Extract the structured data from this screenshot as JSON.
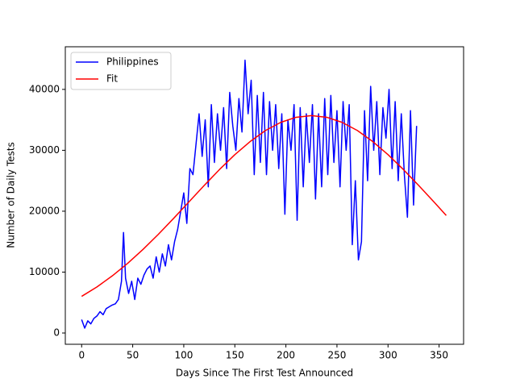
{
  "chart_data": {
    "type": "line",
    "xlabel": "Days Since The First Test Announced",
    "ylabel": "Number of Daily Tests",
    "xlim": [
      -16,
      374
    ],
    "ylim": [
      -1850,
      47000
    ],
    "xticks": [
      0,
      50,
      100,
      150,
      200,
      250,
      300,
      350
    ],
    "yticks": [
      0,
      10000,
      20000,
      30000,
      40000
    ],
    "legend": "upper left",
    "series": [
      {
        "name": "Philippines",
        "color": "#0000ff",
        "x": [
          0,
          3,
          6,
          9,
          12,
          15,
          18,
          21,
          24,
          27,
          30,
          33,
          36,
          39,
          41,
          43,
          46,
          49,
          52,
          55,
          58,
          61,
          64,
          67,
          70,
          73,
          76,
          79,
          82,
          85,
          88,
          91,
          94,
          97,
          100,
          103,
          106,
          109,
          112,
          115,
          118,
          121,
          124,
          127,
          130,
          133,
          136,
          139,
          142,
          145,
          148,
          151,
          154,
          157,
          160,
          163,
          166,
          169,
          172,
          175,
          178,
          181,
          184,
          187,
          190,
          193,
          196,
          199,
          202,
          205,
          208,
          211,
          214,
          217,
          220,
          223,
          226,
          229,
          232,
          235,
          238,
          241,
          244,
          247,
          250,
          253,
          256,
          259,
          262,
          265,
          268,
          271,
          274,
          277,
          280,
          283,
          286,
          289,
          292,
          295,
          298,
          301,
          304,
          307,
          310,
          313,
          316,
          319,
          322,
          325,
          328
        ],
        "values": [
          2200,
          800,
          2000,
          1500,
          2400,
          2800,
          3500,
          3000,
          4000,
          4300,
          4600,
          4800,
          5500,
          8500,
          16500,
          9000,
          6500,
          8500,
          5500,
          9000,
          8000,
          9500,
          10500,
          11000,
          9000,
          12500,
          10000,
          13000,
          11000,
          14500,
          12000,
          15000,
          17000,
          20000,
          23000,
          18000,
          27000,
          26000,
          31000,
          36000,
          29000,
          35000,
          24000,
          37500,
          28000,
          36000,
          30000,
          37000,
          27000,
          39500,
          34000,
          30000,
          38500,
          33000,
          44800,
          36000,
          41500,
          26000,
          39000,
          28000,
          39500,
          26000,
          38000,
          30000,
          37500,
          27000,
          36000,
          19500,
          35000,
          30000,
          37500,
          18500,
          37000,
          24000,
          36000,
          28000,
          37500,
          22000,
          36000,
          24000,
          38500,
          26000,
          39000,
          28000,
          36500,
          24000,
          38000,
          30000,
          37500,
          14500,
          25000,
          12000,
          15000,
          36500,
          25000,
          40500,
          30000,
          38000,
          26000,
          37000,
          32000,
          40000,
          27000,
          38000,
          25000,
          36000,
          26000,
          19000,
          36500,
          21000,
          34000
        ]
      },
      {
        "name": "Fit",
        "color": "#ff0000",
        "x": [
          0,
          15,
          30,
          45,
          60,
          75,
          90,
          105,
          120,
          135,
          150,
          165,
          180,
          195,
          210,
          225,
          240,
          255,
          270,
          285,
          300,
          315,
          330,
          345,
          357
        ],
        "values": [
          6020,
          7570,
          9380,
          11430,
          13710,
          16190,
          18810,
          21520,
          24230,
          26850,
          29290,
          31440,
          33250,
          34590,
          35420,
          35700,
          35420,
          34590,
          33250,
          31440,
          29290,
          26850,
          24230,
          21520,
          19300
        ]
      }
    ]
  }
}
